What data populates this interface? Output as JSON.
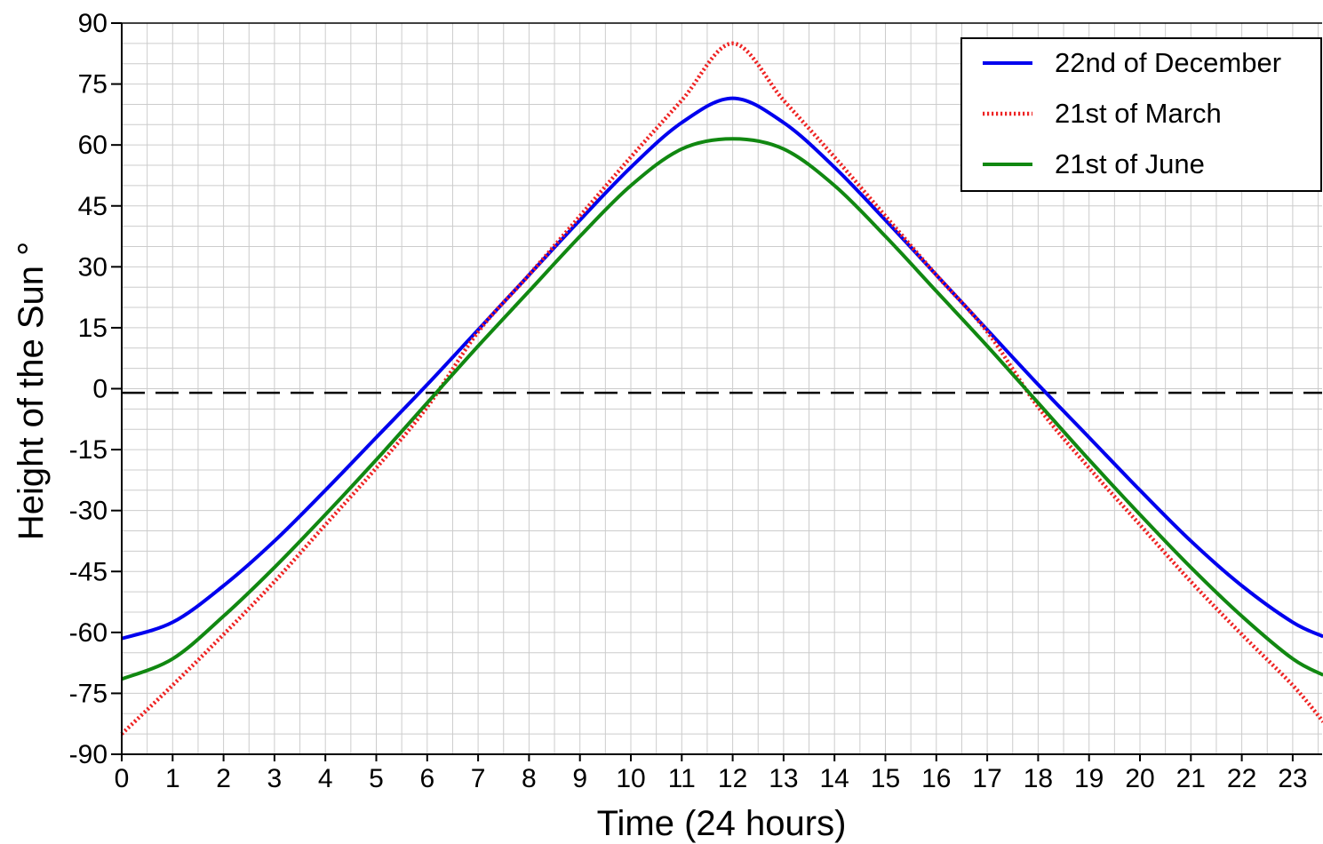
{
  "chart_data": {
    "type": "line",
    "title": "",
    "xlabel": "Time (24 hours)",
    "ylabel": "Height of the Sun °",
    "xlim": [
      0,
      23.6
    ],
    "ylim": [
      -90,
      90
    ],
    "x_ticks": [
      "0",
      "1",
      "2",
      "3",
      "4",
      "5",
      "6",
      "7",
      "8",
      "9",
      "10",
      "11",
      "12",
      "13",
      "14",
      "15",
      "16",
      "17",
      "18",
      "19",
      "20",
      "21",
      "22",
      "23"
    ],
    "y_ticks": [
      "90",
      "75",
      "60",
      "45",
      "30",
      "15",
      "0",
      "-15",
      "-30",
      "-45",
      "-60",
      "-75",
      "-90"
    ],
    "grid": true,
    "legend_position": "top-right",
    "reference_line": {
      "y": -1,
      "style": "dashed",
      "color": "#000000"
    },
    "series": [
      {
        "name": "22nd of December",
        "color": "#0000ee",
        "style": "solid",
        "x": [
          0,
          1,
          2,
          3,
          4,
          5,
          6,
          7,
          8,
          9,
          10,
          11,
          12,
          13,
          14,
          15,
          16,
          17,
          18,
          19,
          20,
          21,
          22,
          23,
          23.6
        ],
        "values": [
          -61.5,
          -57.5,
          -48.5,
          -37.5,
          -25,
          -12,
          1,
          14.5,
          28,
          41.5,
          54.5,
          65.5,
          71.5,
          65.5,
          54.5,
          41.5,
          28,
          14.5,
          1,
          -12,
          -25,
          -37.5,
          -48.5,
          -57.5,
          -61
        ]
      },
      {
        "name": "21st of March",
        "color": "#ee2222",
        "style": "dotted",
        "x": [
          0,
          1,
          2,
          3,
          4,
          5,
          6,
          7,
          8,
          9,
          10,
          11,
          12,
          13,
          14,
          15,
          16,
          17,
          18,
          19,
          20,
          21,
          22,
          23,
          23.6
        ],
        "values": [
          -85,
          -73,
          -60.5,
          -47.5,
          -33.5,
          -19.5,
          -4.5,
          14,
          28,
          42.5,
          57,
          71,
          85,
          71,
          57,
          42.5,
          28,
          14,
          -4.5,
          -19.5,
          -33.5,
          -47.5,
          -60.5,
          -73,
          -82
        ]
      },
      {
        "name": "21st of June",
        "color": "#118811",
        "style": "solid",
        "x": [
          0,
          1,
          2,
          3,
          4,
          5,
          6,
          7,
          8,
          9,
          10,
          11,
          12,
          13,
          14,
          15,
          16,
          17,
          18,
          19,
          20,
          21,
          22,
          23,
          23.6
        ],
        "values": [
          -71.5,
          -66.5,
          -56,
          -44,
          -31,
          -17.5,
          -3.5,
          10.5,
          24,
          37.5,
          50,
          59,
          61.5,
          59,
          50,
          37.5,
          24,
          10.5,
          -3.5,
          -17.5,
          -31,
          -44,
          -56,
          -66.5,
          -70.5
        ]
      }
    ]
  }
}
